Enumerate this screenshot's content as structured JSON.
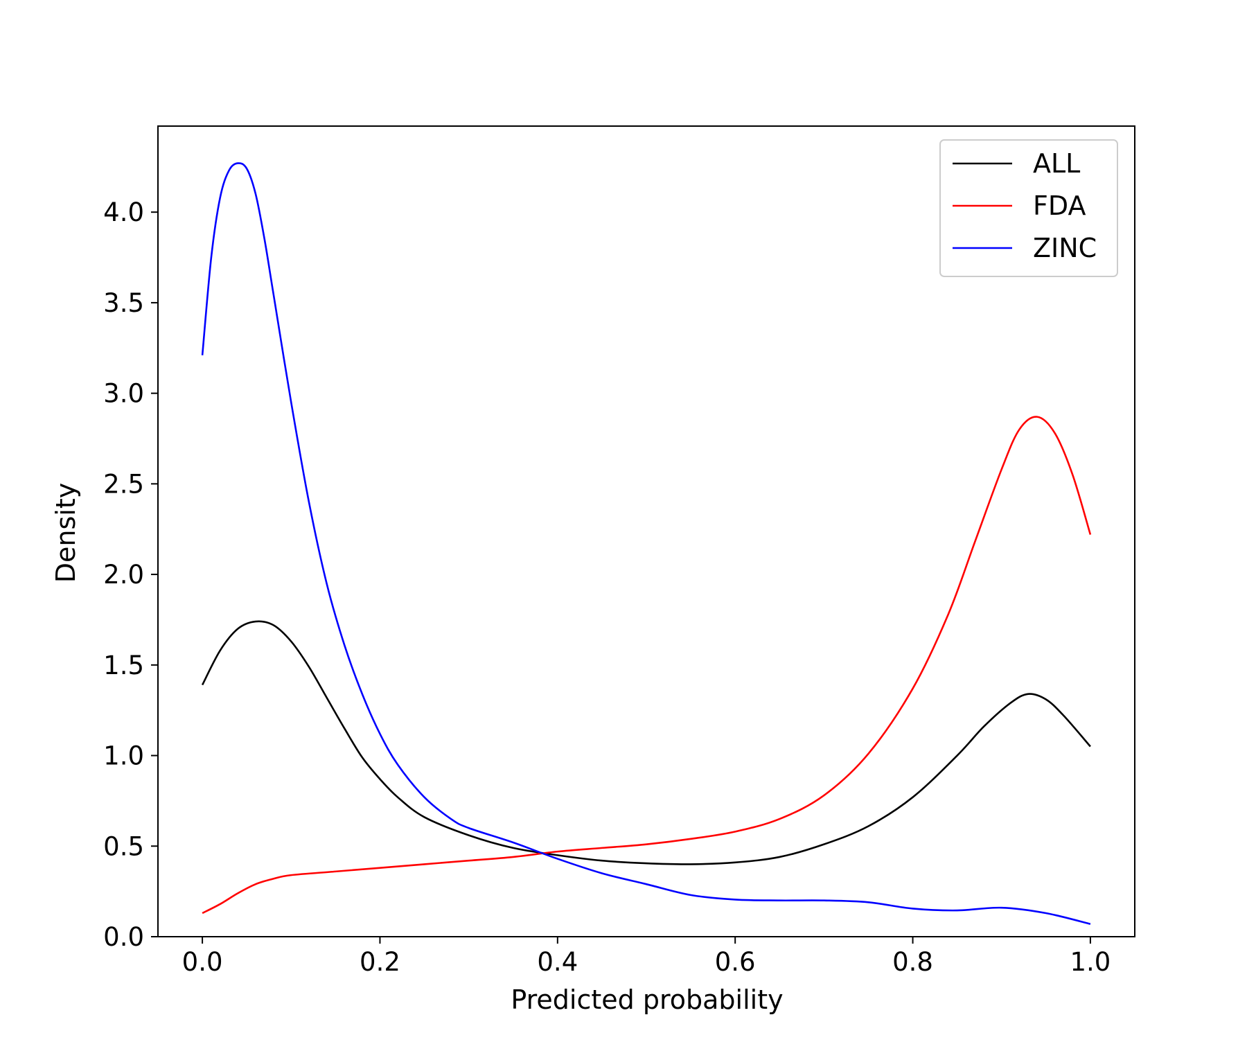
{
  "chart_data": {
    "type": "line",
    "title": "",
    "xlabel": "Predicted probability",
    "ylabel": "Density",
    "xlim": [
      -0.05,
      1.05
    ],
    "ylim": [
      0.0,
      4.475
    ],
    "xticks": [
      "0.0",
      "0.2",
      "0.4",
      "0.6",
      "0.8",
      "1.0"
    ],
    "xtick_values": [
      0.0,
      0.2,
      0.4,
      0.6,
      0.8,
      1.0
    ],
    "yticks": [
      "0.0",
      "0.5",
      "1.0",
      "1.5",
      "2.0",
      "2.5",
      "3.0",
      "3.5",
      "4.0"
    ],
    "ytick_values": [
      0.0,
      0.5,
      1.0,
      1.5,
      2.0,
      2.5,
      3.0,
      3.5,
      4.0
    ],
    "grid": false,
    "legend_position": "top-right",
    "series": [
      {
        "name": "ALL",
        "color": "#000000",
        "x": [
          0.0,
          0.02,
          0.04,
          0.06,
          0.08,
          0.1,
          0.12,
          0.14,
          0.16,
          0.18,
          0.2,
          0.22,
          0.25,
          0.3,
          0.35,
          0.4,
          0.45,
          0.5,
          0.55,
          0.6,
          0.65,
          0.7,
          0.75,
          0.8,
          0.85,
          0.88,
          0.91,
          0.93,
          0.95,
          0.97,
          1.0
        ],
        "y": [
          1.39,
          1.58,
          1.7,
          1.74,
          1.72,
          1.63,
          1.49,
          1.32,
          1.15,
          0.99,
          0.87,
          0.77,
          0.66,
          0.56,
          0.49,
          0.45,
          0.42,
          0.405,
          0.4,
          0.41,
          0.44,
          0.51,
          0.61,
          0.77,
          1.0,
          1.16,
          1.29,
          1.34,
          1.31,
          1.22,
          1.05
        ]
      },
      {
        "name": "FDA",
        "color": "#ff0000",
        "x": [
          0.0,
          0.02,
          0.04,
          0.06,
          0.08,
          0.1,
          0.15,
          0.2,
          0.25,
          0.3,
          0.35,
          0.4,
          0.45,
          0.5,
          0.55,
          0.6,
          0.65,
          0.7,
          0.75,
          0.8,
          0.84,
          0.87,
          0.9,
          0.92,
          0.94,
          0.96,
          0.98,
          1.0
        ],
        "y": [
          0.13,
          0.18,
          0.24,
          0.29,
          0.32,
          0.34,
          0.36,
          0.38,
          0.4,
          0.42,
          0.44,
          0.47,
          0.49,
          0.51,
          0.54,
          0.58,
          0.65,
          0.78,
          1.01,
          1.37,
          1.78,
          2.18,
          2.58,
          2.8,
          2.87,
          2.78,
          2.55,
          2.22
        ]
      },
      {
        "name": "ZINC",
        "color": "#0000ff",
        "x": [
          0.0,
          0.01,
          0.02,
          0.03,
          0.04,
          0.05,
          0.06,
          0.07,
          0.08,
          0.1,
          0.12,
          0.14,
          0.16,
          0.18,
          0.2,
          0.22,
          0.25,
          0.28,
          0.3,
          0.35,
          0.4,
          0.45,
          0.5,
          0.55,
          0.6,
          0.65,
          0.7,
          0.75,
          0.8,
          0.85,
          0.9,
          0.95,
          1.0
        ],
        "y": [
          3.21,
          3.75,
          4.08,
          4.23,
          4.27,
          4.24,
          4.1,
          3.85,
          3.55,
          2.95,
          2.4,
          1.95,
          1.61,
          1.34,
          1.12,
          0.95,
          0.77,
          0.65,
          0.6,
          0.52,
          0.43,
          0.35,
          0.29,
          0.23,
          0.205,
          0.2,
          0.2,
          0.19,
          0.155,
          0.145,
          0.16,
          0.13,
          0.07
        ]
      }
    ]
  }
}
